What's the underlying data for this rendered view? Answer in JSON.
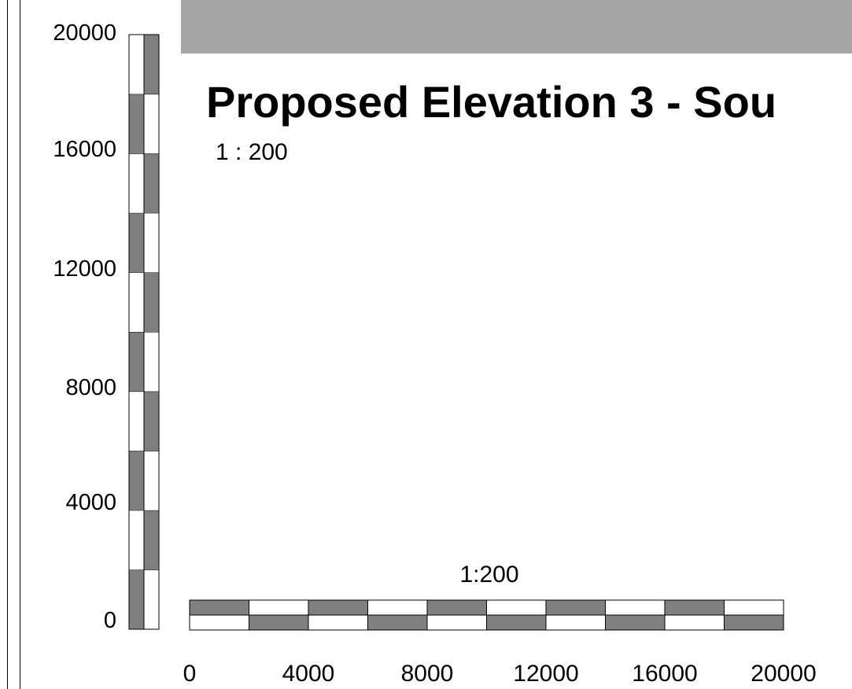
{
  "sheet": {
    "title": "Proposed Elevation 3 - Sou",
    "scale": "1 : 200"
  },
  "vertical_scale_bar": {
    "tick_labels": [
      "0",
      "4000",
      "8000",
      "12000",
      "16000",
      "20000"
    ],
    "divisions": 10
  },
  "horizontal_scale_bar": {
    "label": "1:200",
    "tick_labels": [
      "0",
      "4000",
      "8000",
      "12000",
      "16000",
      "20000"
    ],
    "divisions": 10
  },
  "colors": {
    "dark": "#7f7f7f",
    "light": "#ffffff",
    "banner": "#a6a6a6",
    "line": "#000000"
  }
}
